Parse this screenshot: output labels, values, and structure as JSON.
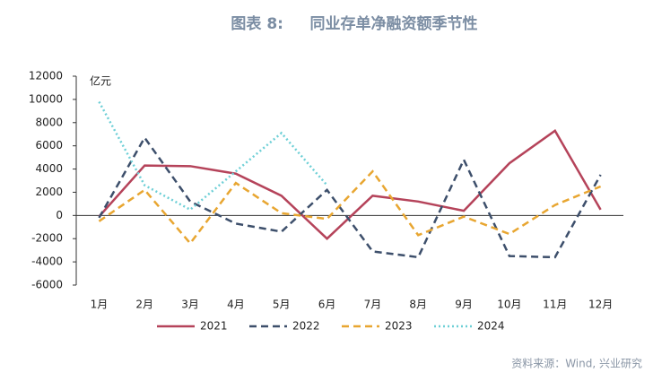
{
  "chart_data": {
    "type": "line",
    "title": "图表 8:     同业存单净融资额季节性",
    "y_label": "亿元",
    "source": "资料来源：Wind, 兴业研究",
    "categories": [
      "1月",
      "2月",
      "3月",
      "4月",
      "5月",
      "6月",
      "7月",
      "8月",
      "9月",
      "10月",
      "11月",
      "12月"
    ],
    "series": [
      {
        "name": "2021",
        "color": "#b5435a",
        "dash": "solid",
        "values": [
          -100,
          4300,
          4250,
          3600,
          1700,
          -2000,
          1700,
          1200,
          400,
          4500,
          7300,
          500
        ]
      },
      {
        "name": "2022",
        "color": "#3d4f6b",
        "dash": "dashed",
        "values": [
          -200,
          6700,
          1200,
          -700,
          -1400,
          2200,
          -3100,
          -3600,
          4800,
          -3500,
          -3600,
          3500
        ]
      },
      {
        "name": "2023",
        "color": "#e8a631",
        "dash": "dashed",
        "values": [
          -500,
          2200,
          -2400,
          2800,
          200,
          -300,
          3800,
          -1700,
          -100,
          -1600,
          900,
          2500
        ]
      },
      {
        "name": "2024",
        "color": "#6dcfd6",
        "dash": "dotted",
        "values": [
          9800,
          2600,
          500,
          3800,
          7100,
          2600,
          null,
          null,
          null,
          null,
          null,
          null
        ]
      }
    ],
    "ylim": [
      -6000,
      12000
    ],
    "yticks": [
      -6000,
      -4000,
      -2000,
      0,
      2000,
      4000,
      6000,
      8000,
      10000,
      12000
    ],
    "grid": false,
    "legend": "bottom"
  }
}
